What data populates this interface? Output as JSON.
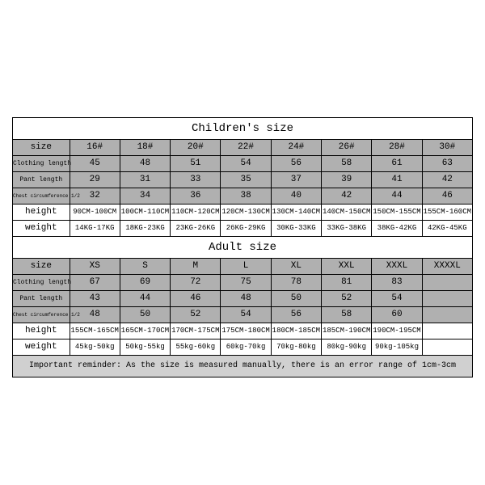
{
  "children": {
    "title": "Children's size",
    "row_labels": [
      "size",
      "Clothing length",
      "Pant length",
      "Chest circumference 1/2",
      "height",
      "weight"
    ],
    "cols": [
      "16#",
      "18#",
      "20#",
      "22#",
      "24#",
      "26#",
      "28#",
      "30#"
    ],
    "cloth": [
      "45",
      "48",
      "51",
      "54",
      "56",
      "58",
      "61",
      "63"
    ],
    "pant": [
      "29",
      "31",
      "33",
      "35",
      "37",
      "39",
      "41",
      "42"
    ],
    "chest": [
      "32",
      "34",
      "36",
      "38",
      "40",
      "42",
      "44",
      "46"
    ],
    "height": [
      "90CM-100CM",
      "100CM-110CM",
      "110CM-120CM",
      "120CM-130CM",
      "130CM-140CM",
      "140CM-150CM",
      "150CM-155CM",
      "155CM-160CM"
    ],
    "weight": [
      "14KG-17KG",
      "18KG-23KG",
      "23KG-26KG",
      "26KG-29KG",
      "30KG-33KG",
      "33KG-38KG",
      "38KG-42KG",
      "42KG-45KG"
    ]
  },
  "adult": {
    "title": "Adult size",
    "row_labels": [
      "size",
      "Clothing length",
      "Pant length",
      "Chest circumference 1/2",
      "height",
      "weight"
    ],
    "cols": [
      "XS",
      "S",
      "M",
      "L",
      "XL",
      "XXL",
      "XXXL",
      "XXXXL"
    ],
    "cloth": [
      "67",
      "69",
      "72",
      "75",
      "78",
      "81",
      "83",
      ""
    ],
    "pant": [
      "43",
      "44",
      "46",
      "48",
      "50",
      "52",
      "54",
      ""
    ],
    "chest": [
      "48",
      "50",
      "52",
      "54",
      "56",
      "58",
      "60",
      ""
    ],
    "height": [
      "155CM-165CM",
      "165CM-170CM",
      "170CM-175CM",
      "175CM-180CM",
      "180CM-185CM",
      "185CM-190CM",
      "190CM-195CM",
      ""
    ],
    "weight": [
      "45kg-50kg",
      "50kg-55kg",
      "55kg-60kg",
      "60kg-70kg",
      "70kg-80kg",
      "80kg-90kg",
      "90kg-105kg",
      ""
    ]
  },
  "note": "Important reminder: As the size is measured manually, there is an error range of 1cm-3cm"
}
